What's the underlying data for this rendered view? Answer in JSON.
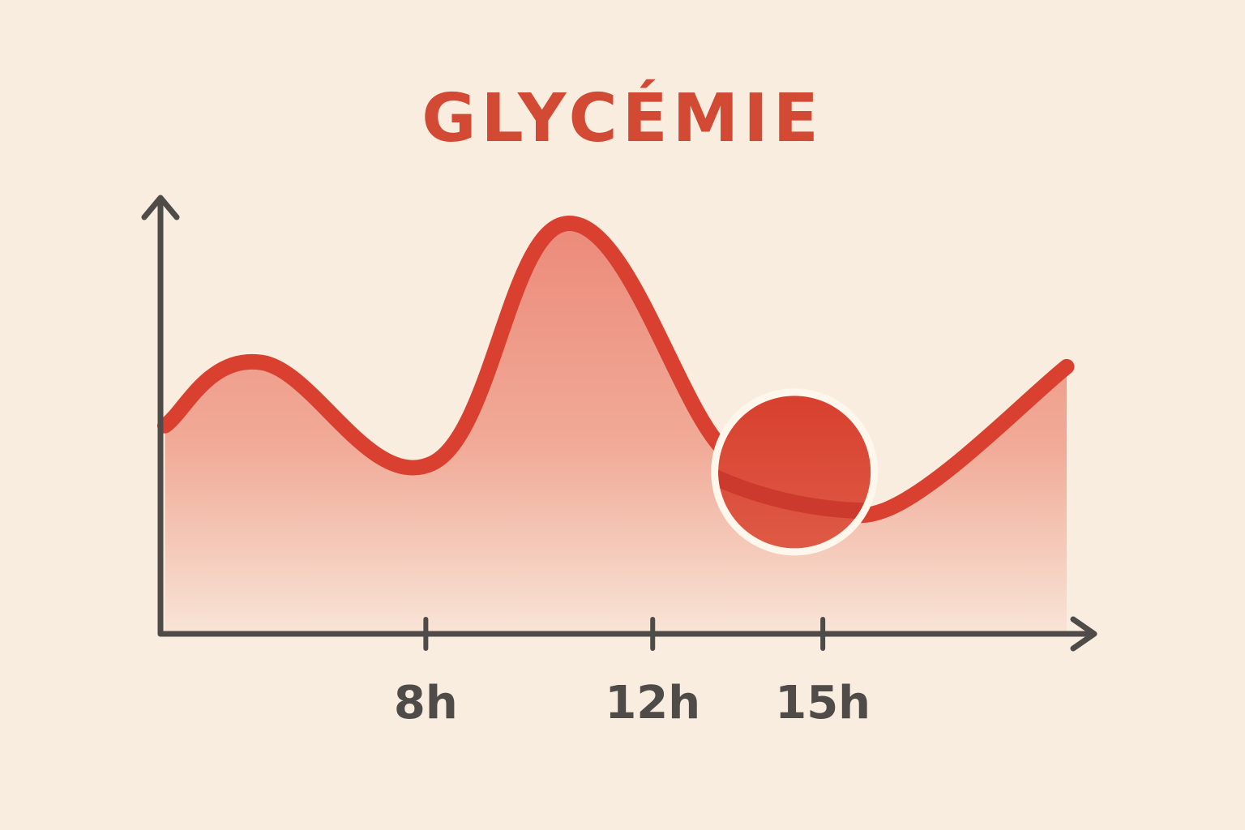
{
  "colors": {
    "background": "#f9ede0",
    "title": "#d24a33",
    "line": "#d9402f",
    "area_top": "#ec8a7a",
    "area_bottom": "#f8e4d6",
    "axis": "#4f4b48",
    "marker_fill": "#d94535",
    "marker_ring": "#fff7ec"
  },
  "chart_data": {
    "type": "area",
    "title": "GLYCÉMIE",
    "xlabel": "",
    "ylabel": "",
    "xlim": [
      3.35,
      19.5
    ],
    "ylim": [
      0,
      100
    ],
    "grid": false,
    "x_ticks": [
      {
        "value": 8,
        "label": "8h"
      },
      {
        "value": 12,
        "label": "12h"
      },
      {
        "value": 15,
        "label": "15h"
      }
    ],
    "series": [
      {
        "x": [
          3.4,
          5.1,
          8.1,
          10.5,
          13.2,
          14.5,
          16.1,
          19.3
        ],
        "y": [
          49,
          64,
          40,
          97,
          44,
          38,
          29,
          63
        ]
      }
    ],
    "highlight": {
      "x": 14.5,
      "y": 38
    }
  }
}
